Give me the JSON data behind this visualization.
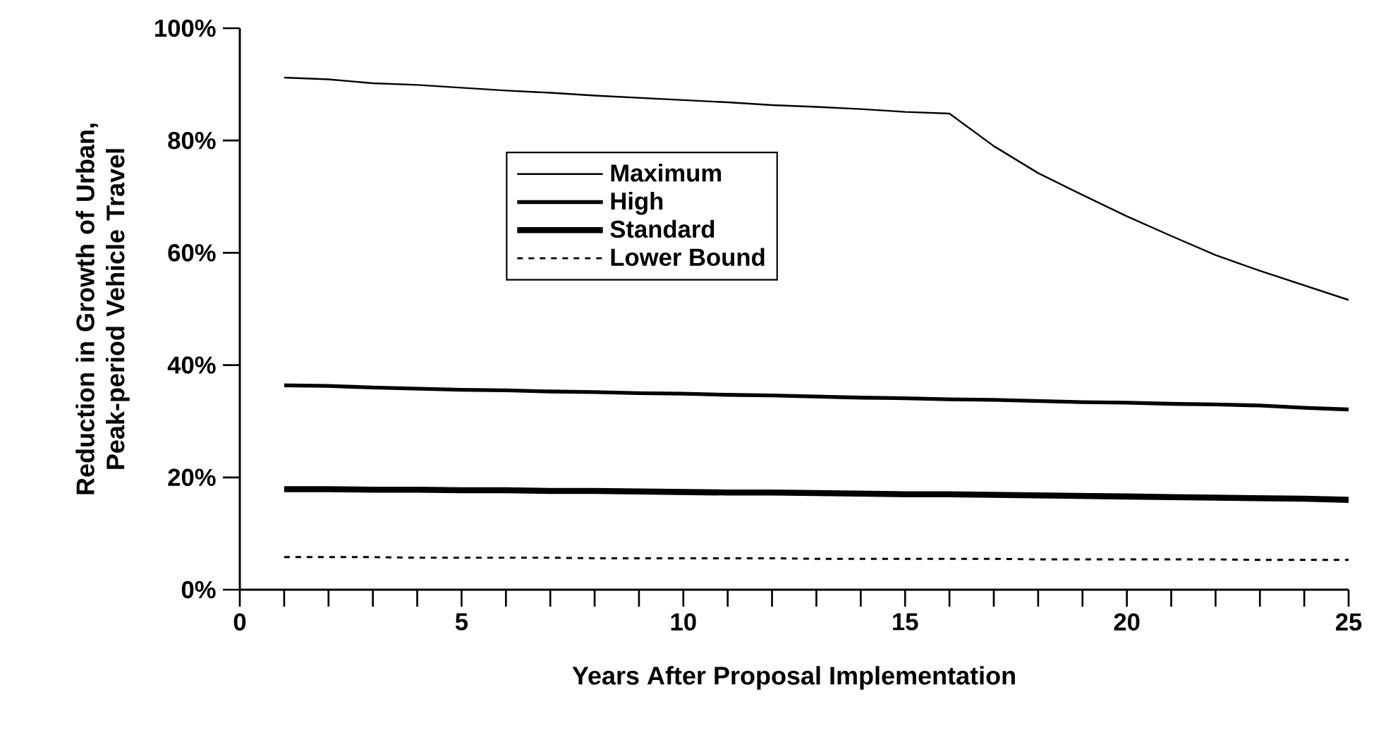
{
  "chart_data": {
    "type": "line",
    "xlabel": "Years After Proposal Implementation",
    "ylabel": "Reduction in Growth of Urban,\nPeak-period Vehicle Travel",
    "x": [
      1,
      2,
      3,
      4,
      5,
      6,
      7,
      8,
      9,
      10,
      11,
      12,
      13,
      14,
      15,
      16,
      17,
      18,
      19,
      20,
      21,
      22,
      23,
      24,
      25
    ],
    "series": [
      {
        "name": "Maximum",
        "color": "#000000",
        "line_style": "solid",
        "values": [
          91.2,
          90.9,
          90.2,
          89.9,
          89.4,
          88.9,
          88.5,
          88.0,
          87.6,
          87.2,
          86.8,
          86.3,
          86.0,
          85.6,
          85.1,
          84.8,
          79.0,
          74.2,
          70.3,
          66.5,
          63.0,
          59.6,
          56.8,
          54.2,
          51.6
        ]
      },
      {
        "name": "High",
        "color": "#000000",
        "line_style": "solid",
        "values": [
          36.4,
          36.3,
          36.0,
          35.8,
          35.6,
          35.5,
          35.3,
          35.2,
          35.0,
          34.9,
          34.7,
          34.6,
          34.4,
          34.2,
          34.1,
          33.9,
          33.8,
          33.6,
          33.4,
          33.3,
          33.1,
          33.0,
          32.8,
          32.4,
          32.1
        ]
      },
      {
        "name": "Standard",
        "color": "#000000",
        "line_style": "solid",
        "values": [
          17.9,
          17.9,
          17.8,
          17.8,
          17.7,
          17.7,
          17.6,
          17.6,
          17.5,
          17.4,
          17.3,
          17.3,
          17.2,
          17.1,
          17.0,
          17.0,
          16.9,
          16.8,
          16.7,
          16.6,
          16.5,
          16.4,
          16.3,
          16.2,
          16.0
        ]
      },
      {
        "name": "Lower Bound",
        "color": "#000000",
        "line_style": "dashed",
        "values": [
          5.8,
          5.8,
          5.8,
          5.7,
          5.7,
          5.7,
          5.7,
          5.6,
          5.6,
          5.6,
          5.6,
          5.6,
          5.5,
          5.5,
          5.5,
          5.5,
          5.5,
          5.4,
          5.4,
          5.4,
          5.4,
          5.4,
          5.3,
          5.3,
          5.3
        ]
      }
    ],
    "xlim": [
      0,
      25
    ],
    "xticks": [
      0,
      {
        "value": 1,
        "label": null
      },
      {
        "value": 2,
        "label": null
      },
      {
        "value": 3,
        "label": null
      },
      {
        "value": 4,
        "label": null
      },
      5,
      {
        "value": 6,
        "label": null
      },
      {
        "value": 7,
        "label": null
      },
      {
        "value": 8,
        "label": null
      },
      {
        "value": 9,
        "label": null
      },
      10,
      {
        "value": 11,
        "label": null
      },
      {
        "value": 12,
        "label": null
      },
      {
        "value": 13,
        "label": null
      },
      {
        "value": 14,
        "label": null
      },
      15,
      {
        "value": 16,
        "label": null
      },
      {
        "value": 17,
        "label": null
      },
      {
        "value": 18,
        "label": null
      },
      {
        "value": 19,
        "label": null
      },
      20,
      {
        "value": 21,
        "label": null
      },
      {
        "value": 22,
        "label": null
      },
      {
        "value": 23,
        "label": null
      },
      {
        "value": 24,
        "label": null
      },
      25
    ],
    "ylim": [
      0,
      100
    ],
    "yticks": [
      {
        "value": 0,
        "label": "0%"
      },
      {
        "value": 20,
        "label": "20%"
      },
      {
        "value": 40,
        "label": "40%"
      },
      {
        "value": 60,
        "label": "60%"
      },
      {
        "value": 80,
        "label": "80%"
      },
      {
        "value": 100,
        "label": "100%"
      }
    ],
    "grid": false,
    "legend": "top left",
    "marker": "none"
  }
}
